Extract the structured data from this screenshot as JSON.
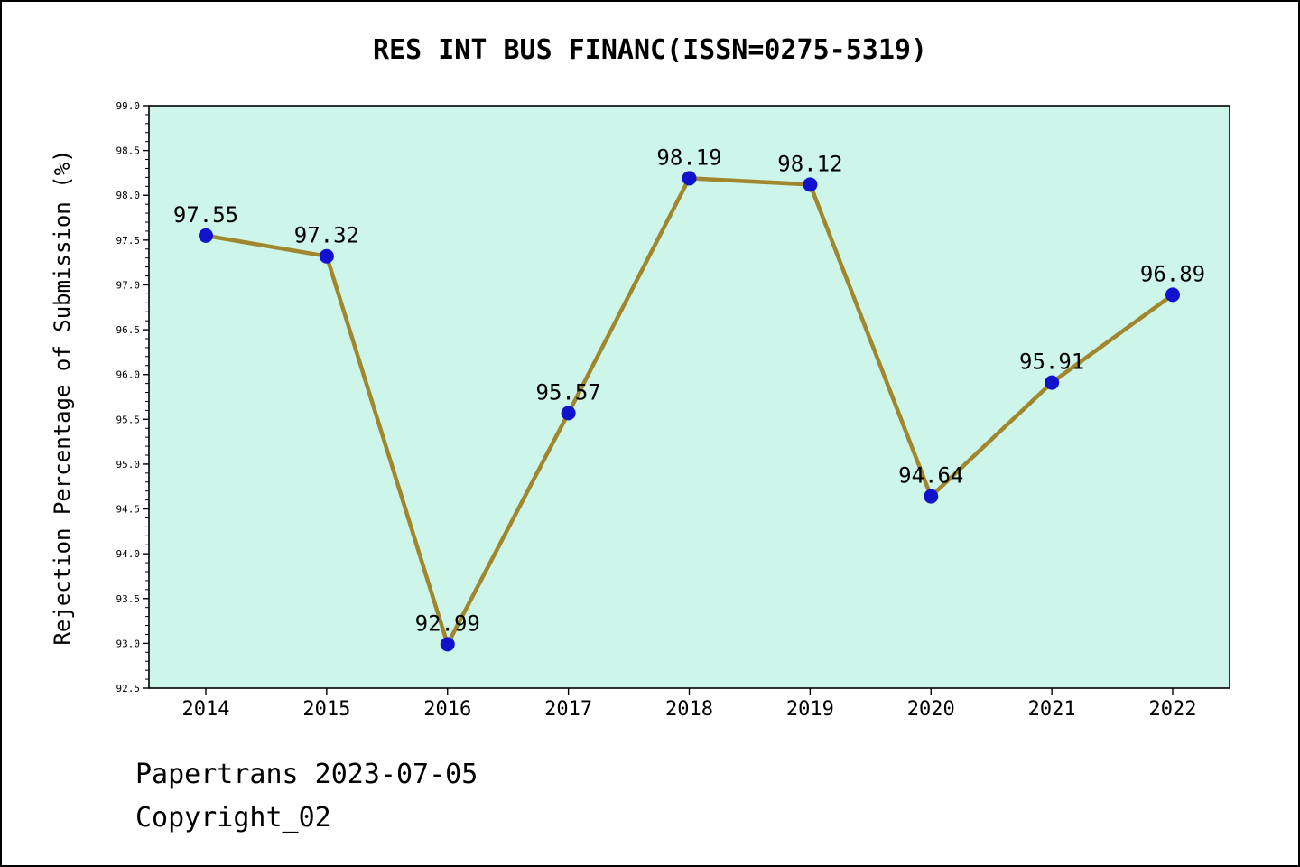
{
  "title": "RES INT BUS FINANC(ISSN=0275-5319)",
  "footer": {
    "line1": "Papertrans 2023-07-05",
    "line2": "Copyright_02"
  },
  "chart_data": {
    "type": "line",
    "categories": [
      "2014",
      "2015",
      "2016",
      "2017",
      "2018",
      "2019",
      "2020",
      "2021",
      "2022"
    ],
    "values": [
      97.55,
      97.32,
      92.99,
      95.57,
      98.19,
      98.12,
      94.64,
      95.91,
      96.89
    ],
    "title": "RES INT BUS FINANC(ISSN=0275-5319)",
    "xlabel": "",
    "ylabel": "Rejection Percentage of Submission (%)",
    "ylim": [
      92.5,
      99.0
    ],
    "ytick_step": 0.5,
    "ytick_minor_step": 0.1,
    "grid": false,
    "legend": "none",
    "marker": "circle",
    "colors": {
      "line": "#a0872d",
      "marker": "#1212cc",
      "plot_bg": "#cdf5e9",
      "axis": "#000000",
      "label_text": "#000000"
    }
  }
}
